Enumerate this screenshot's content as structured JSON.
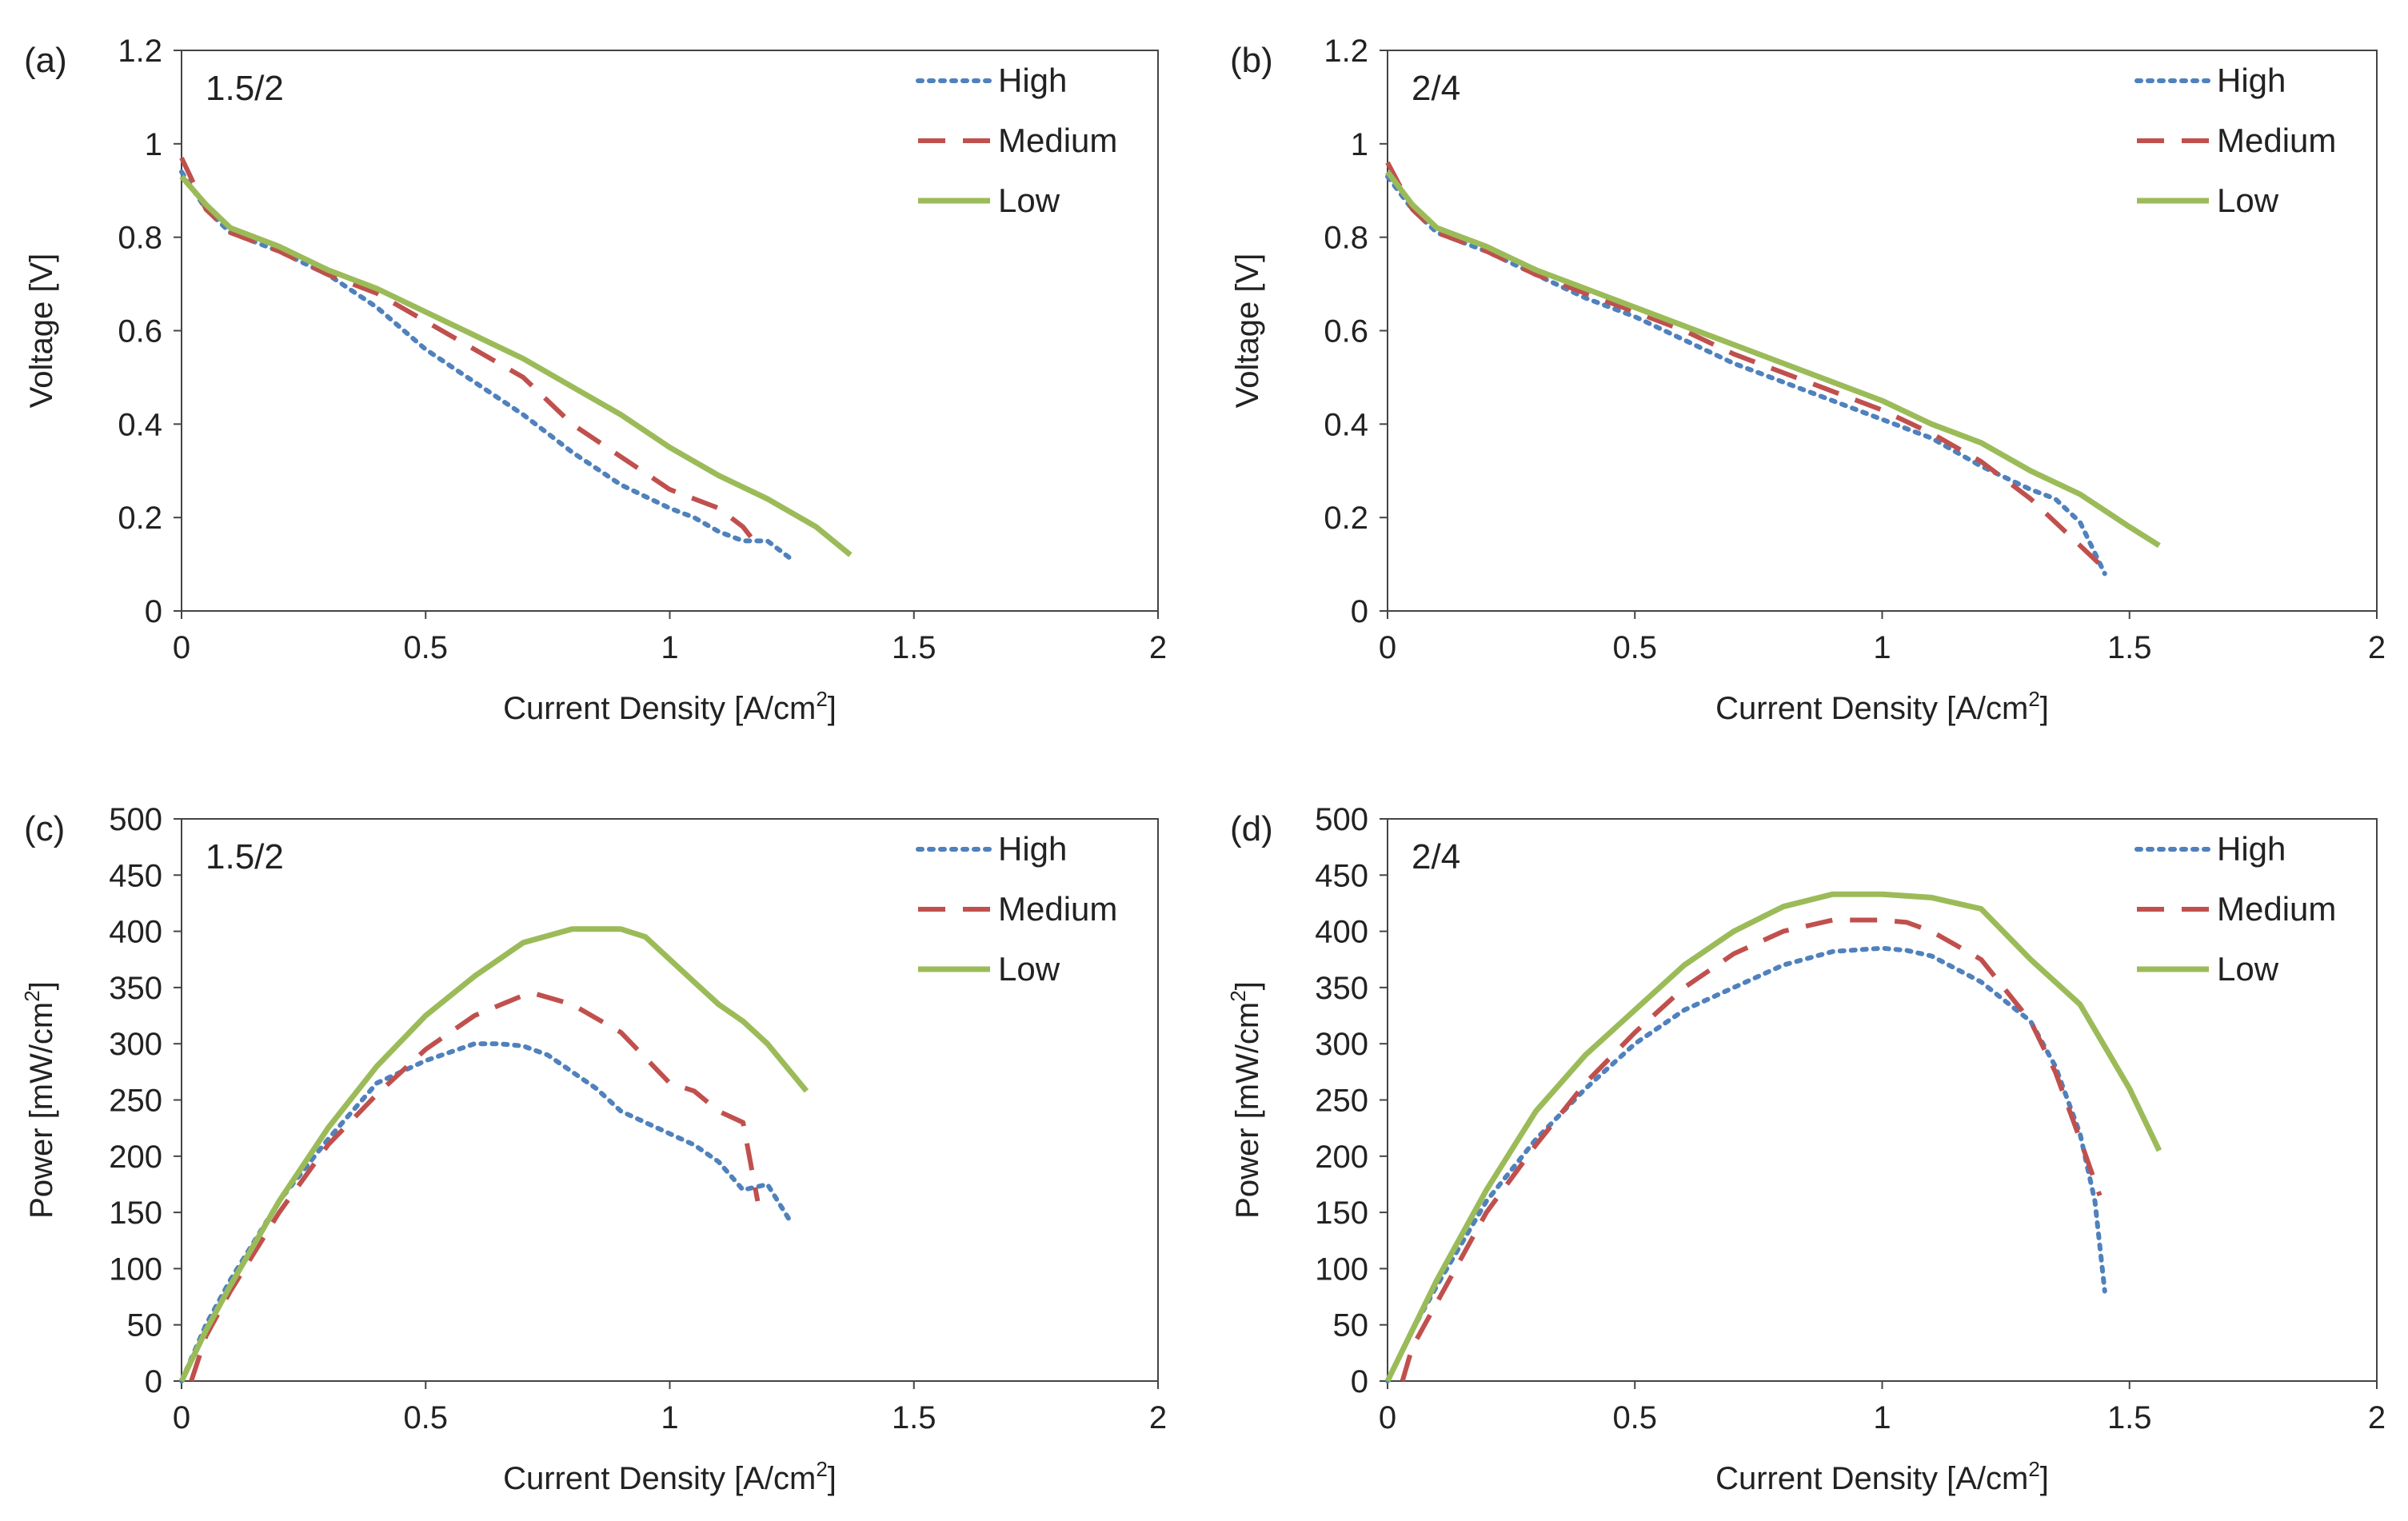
{
  "colors": {
    "High": "#4f81bd",
    "Medium": "#c0504d",
    "Low": "#9bbb59",
    "axis": "#444444"
  },
  "legend_labels": [
    "High",
    "Medium",
    "Low"
  ],
  "chart_data": [
    {
      "id": "a",
      "type": "line",
      "panel_label": "(a)",
      "annotation": "1.5/2",
      "xlabel": "Current Density [A/cm",
      "xlabel_sup": "2",
      "xlabel_end": "]",
      "ylabel": "Voltage [V]",
      "ylabel_sup": "",
      "ylabel_end": "",
      "xlim": [
        0,
        2
      ],
      "ylim": [
        0,
        1.2
      ],
      "xticks": [
        0,
        0.5,
        1,
        1.5,
        2
      ],
      "yticks": [
        0,
        0.2,
        0.4,
        0.6,
        0.8,
        1,
        1.2
      ],
      "xtick_labels": [
        "0",
        "0.5",
        "1",
        "1.5",
        "2"
      ],
      "ytick_labels": [
        "0",
        "0.2",
        "0.4",
        "0.6",
        "0.8",
        "1",
        "1.2"
      ],
      "legend": "top-right",
      "series": [
        {
          "name": "High",
          "x": [
            0,
            0.05,
            0.1,
            0.2,
            0.3,
            0.4,
            0.5,
            0.6,
            0.7,
            0.8,
            0.9,
            1.0,
            1.05,
            1.1,
            1.15,
            1.2,
            1.25
          ],
          "y": [
            0.94,
            0.86,
            0.81,
            0.77,
            0.72,
            0.65,
            0.56,
            0.49,
            0.42,
            0.34,
            0.27,
            0.22,
            0.2,
            0.17,
            0.15,
            0.15,
            0.11
          ]
        },
        {
          "name": "Medium",
          "x": [
            0,
            0.05,
            0.1,
            0.2,
            0.3,
            0.4,
            0.5,
            0.6,
            0.7,
            0.8,
            0.9,
            1.0,
            1.05,
            1.1,
            1.15,
            1.18
          ],
          "y": [
            0.97,
            0.86,
            0.81,
            0.77,
            0.72,
            0.68,
            0.62,
            0.56,
            0.5,
            0.4,
            0.33,
            0.26,
            0.24,
            0.22,
            0.18,
            0.14
          ]
        },
        {
          "name": "Low",
          "x": [
            0,
            0.05,
            0.1,
            0.2,
            0.3,
            0.4,
            0.5,
            0.6,
            0.7,
            0.8,
            0.9,
            1.0,
            1.1,
            1.2,
            1.3,
            1.37
          ],
          "y": [
            0.93,
            0.87,
            0.82,
            0.78,
            0.73,
            0.69,
            0.64,
            0.59,
            0.54,
            0.48,
            0.42,
            0.35,
            0.29,
            0.24,
            0.18,
            0.12
          ]
        }
      ]
    },
    {
      "id": "b",
      "type": "line",
      "panel_label": "(b)",
      "annotation": "2/4",
      "xlabel": "Current Density [A/cm",
      "xlabel_sup": "2",
      "xlabel_end": "]",
      "ylabel": "Voltage [V]",
      "ylabel_sup": "",
      "ylabel_end": "",
      "xlim": [
        0,
        2
      ],
      "ylim": [
        0,
        1.2
      ],
      "xticks": [
        0,
        0.5,
        1,
        1.5,
        2
      ],
      "yticks": [
        0,
        0.2,
        0.4,
        0.6,
        0.8,
        1,
        1.2
      ],
      "xtick_labels": [
        "0",
        "0.5",
        "1",
        "1.5",
        "2"
      ],
      "ytick_labels": [
        "0",
        "0.2",
        "0.4",
        "0.6",
        "0.8",
        "1",
        "1.2"
      ],
      "legend": "top-right",
      "series": [
        {
          "name": "High",
          "x": [
            0,
            0.05,
            0.1,
            0.2,
            0.3,
            0.4,
            0.5,
            0.6,
            0.7,
            0.8,
            0.9,
            1.0,
            1.1,
            1.2,
            1.3,
            1.35,
            1.4,
            1.45
          ],
          "y": [
            0.93,
            0.86,
            0.81,
            0.77,
            0.72,
            0.67,
            0.63,
            0.58,
            0.53,
            0.49,
            0.45,
            0.41,
            0.37,
            0.31,
            0.26,
            0.24,
            0.19,
            0.08
          ]
        },
        {
          "name": "Medium",
          "x": [
            0,
            0.05,
            0.1,
            0.2,
            0.3,
            0.4,
            0.5,
            0.6,
            0.7,
            0.8,
            0.9,
            1.0,
            1.1,
            1.2,
            1.3,
            1.35,
            1.4,
            1.44
          ],
          "y": [
            0.96,
            0.86,
            0.81,
            0.77,
            0.72,
            0.68,
            0.64,
            0.6,
            0.55,
            0.51,
            0.47,
            0.43,
            0.38,
            0.32,
            0.24,
            0.19,
            0.14,
            0.1
          ]
        },
        {
          "name": "Low",
          "x": [
            0,
            0.05,
            0.1,
            0.2,
            0.3,
            0.4,
            0.5,
            0.6,
            0.7,
            0.8,
            0.9,
            1.0,
            1.1,
            1.2,
            1.3,
            1.4,
            1.5,
            1.56
          ],
          "y": [
            0.94,
            0.87,
            0.82,
            0.78,
            0.73,
            0.69,
            0.65,
            0.61,
            0.57,
            0.53,
            0.49,
            0.45,
            0.4,
            0.36,
            0.3,
            0.25,
            0.18,
            0.14
          ]
        }
      ]
    },
    {
      "id": "c",
      "type": "line",
      "panel_label": "(c)",
      "annotation": "1.5/2",
      "xlabel": "Current Density [A/cm",
      "xlabel_sup": "2",
      "xlabel_end": "]",
      "ylabel": "Power [mW/cm",
      "ylabel_sup": "2",
      "ylabel_end": "]",
      "xlim": [
        0,
        2
      ],
      "ylim": [
        0,
        500
      ],
      "xticks": [
        0,
        0.5,
        1,
        1.5,
        2
      ],
      "yticks": [
        0,
        50,
        100,
        150,
        200,
        250,
        300,
        350,
        400,
        450,
        500
      ],
      "xtick_labels": [
        "0",
        "0.5",
        "1",
        "1.5",
        "2"
      ],
      "ytick_labels": [
        "0",
        "50",
        "100",
        "150",
        "200",
        "250",
        "300",
        "350",
        "400",
        "450",
        "500"
      ],
      "legend": "top-right",
      "series": [
        {
          "name": "High",
          "x": [
            0,
            0.05,
            0.1,
            0.2,
            0.3,
            0.4,
            0.5,
            0.6,
            0.65,
            0.7,
            0.75,
            0.8,
            0.85,
            0.9,
            1.0,
            1.05,
            1.1,
            1.15,
            1.2,
            1.25
          ],
          "y": [
            0,
            50,
            90,
            160,
            215,
            265,
            285,
            300,
            300,
            298,
            290,
            275,
            260,
            240,
            220,
            210,
            195,
            170,
            175,
            140
          ]
        },
        {
          "name": "Medium",
          "x": [
            0.02,
            0.05,
            0.1,
            0.2,
            0.3,
            0.4,
            0.5,
            0.6,
            0.7,
            0.72,
            0.8,
            0.9,
            1.0,
            1.05,
            1.1,
            1.15,
            1.18
          ],
          "y": [
            0,
            40,
            80,
            150,
            210,
            255,
            295,
            325,
            343,
            345,
            335,
            310,
            265,
            258,
            240,
            230,
            160
          ]
        },
        {
          "name": "Low",
          "x": [
            0,
            0.05,
            0.1,
            0.2,
            0.3,
            0.4,
            0.5,
            0.6,
            0.7,
            0.8,
            0.9,
            0.95,
            1.0,
            1.05,
            1.1,
            1.15,
            1.2,
            1.28
          ],
          "y": [
            0,
            45,
            85,
            160,
            225,
            280,
            325,
            360,
            390,
            402,
            402,
            395,
            375,
            355,
            335,
            320,
            300,
            258
          ]
        }
      ]
    },
    {
      "id": "d",
      "type": "line",
      "panel_label": "(d)",
      "annotation": "2/4",
      "xlabel": "Current Density [A/cm",
      "xlabel_sup": "2",
      "xlabel_end": "]",
      "ylabel": "Power [mW/cm",
      "ylabel_sup": "2",
      "ylabel_end": "]",
      "xlim": [
        0,
        2
      ],
      "ylim": [
        0,
        500
      ],
      "xticks": [
        0,
        0.5,
        1,
        1.5,
        2
      ],
      "yticks": [
        0,
        50,
        100,
        150,
        200,
        250,
        300,
        350,
        400,
        450,
        500
      ],
      "xtick_labels": [
        "0",
        "0.5",
        "1",
        "1.5",
        "2"
      ],
      "ytick_labels": [
        "0",
        "50",
        "100",
        "150",
        "200",
        "250",
        "300",
        "350",
        "400",
        "450",
        "500"
      ],
      "legend": "top-right",
      "series": [
        {
          "name": "High",
          "x": [
            0,
            0.05,
            0.1,
            0.2,
            0.3,
            0.4,
            0.5,
            0.6,
            0.7,
            0.8,
            0.9,
            1.0,
            1.05,
            1.1,
            1.2,
            1.3,
            1.35,
            1.4,
            1.43,
            1.45
          ],
          "y": [
            0,
            45,
            85,
            160,
            215,
            260,
            300,
            330,
            350,
            370,
            382,
            385,
            383,
            378,
            355,
            320,
            280,
            220,
            160,
            80
          ]
        },
        {
          "name": "Medium",
          "x": [
            0.03,
            0.05,
            0.1,
            0.2,
            0.3,
            0.4,
            0.5,
            0.6,
            0.7,
            0.8,
            0.9,
            1.0,
            1.05,
            1.1,
            1.2,
            1.3,
            1.35,
            1.4,
            1.44
          ],
          "y": [
            0,
            30,
            70,
            150,
            210,
            265,
            310,
            350,
            380,
            400,
            410,
            410,
            408,
            400,
            375,
            320,
            275,
            215,
            165
          ]
        },
        {
          "name": "Low",
          "x": [
            0,
            0.05,
            0.1,
            0.2,
            0.3,
            0.4,
            0.5,
            0.6,
            0.7,
            0.8,
            0.9,
            1.0,
            1.1,
            1.2,
            1.3,
            1.4,
            1.5,
            1.56
          ],
          "y": [
            0,
            45,
            90,
            170,
            240,
            290,
            330,
            370,
            400,
            422,
            433,
            433,
            430,
            420,
            375,
            335,
            260,
            205
          ]
        }
      ]
    }
  ]
}
